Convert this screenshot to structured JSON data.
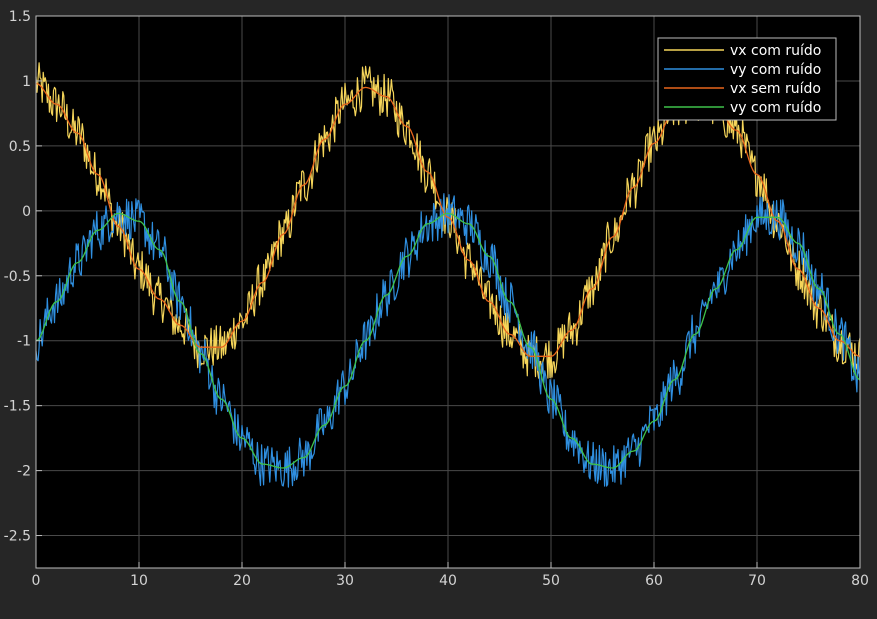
{
  "chart_data": {
    "type": "line",
    "title": "",
    "xlabel": "",
    "ylabel": "",
    "xlim": [
      0,
      80
    ],
    "ylim": [
      -2.75,
      1.5
    ],
    "x_ticks": [
      0,
      10,
      20,
      30,
      40,
      50,
      60,
      70,
      80
    ],
    "x_tick_labels": [
      "0",
      "10",
      "20",
      "30",
      "40",
      "50",
      "60",
      "70",
      "80"
    ],
    "y_ticks": [
      1.5,
      1,
      0.5,
      0,
      -0.5,
      -1,
      -1.5,
      -2,
      -2.5
    ],
    "y_tick_labels": [
      "1.5",
      "1",
      "0.5",
      "0",
      "-0.5",
      "-1",
      "-1.5",
      "-2",
      "-2.5"
    ],
    "grid": true,
    "legend_position": "top-right",
    "x": [
      0,
      2,
      4,
      6,
      8,
      10,
      12,
      14,
      16,
      18,
      20,
      22,
      24,
      26,
      28,
      30,
      32,
      34,
      36,
      38,
      40,
      42,
      44,
      46,
      48,
      50,
      52,
      54,
      56,
      58,
      60,
      62,
      64,
      66,
      68,
      70,
      72,
      74,
      76,
      78,
      80
    ],
    "series": [
      {
        "name": "vx com ruído",
        "color": "#f5d55a",
        "style": "noisy",
        "values": [
          0.98,
          0.82,
          0.6,
          0.28,
          -0.12,
          -0.45,
          -0.68,
          -0.88,
          -1.05,
          -1.05,
          -0.85,
          -0.55,
          -0.18,
          0.2,
          0.55,
          0.82,
          0.95,
          0.88,
          0.65,
          0.3,
          -0.05,
          -0.38,
          -0.7,
          -0.95,
          -1.12,
          -1.12,
          -0.92,
          -0.6,
          -0.2,
          0.18,
          0.52,
          0.78,
          0.85,
          0.8,
          0.62,
          0.28,
          -0.08,
          -0.45,
          -0.75,
          -1.0,
          -1.12
        ]
      },
      {
        "name": "vy com ruído",
        "color": "#2f8fe0",
        "style": "noisy",
        "values": [
          -1.0,
          -0.7,
          -0.4,
          -0.15,
          -0.02,
          -0.08,
          -0.3,
          -0.7,
          -1.1,
          -1.45,
          -1.75,
          -1.95,
          -1.98,
          -1.9,
          -1.65,
          -1.35,
          -1.0,
          -0.65,
          -0.35,
          -0.1,
          -0.02,
          -0.1,
          -0.35,
          -0.7,
          -1.05,
          -1.45,
          -1.75,
          -1.95,
          -1.98,
          -1.85,
          -1.62,
          -1.3,
          -0.95,
          -0.6,
          -0.3,
          -0.05,
          -0.05,
          -0.25,
          -0.6,
          -0.95,
          -1.3
        ]
      },
      {
        "name": "vx sem ruído",
        "color": "#e8661c",
        "style": "smooth",
        "values": [
          0.98,
          0.82,
          0.6,
          0.28,
          -0.12,
          -0.45,
          -0.68,
          -0.88,
          -1.05,
          -1.05,
          -0.85,
          -0.55,
          -0.18,
          0.2,
          0.55,
          0.82,
          0.95,
          0.88,
          0.65,
          0.3,
          -0.05,
          -0.38,
          -0.7,
          -0.95,
          -1.12,
          -1.12,
          -0.92,
          -0.6,
          -0.2,
          0.18,
          0.52,
          0.78,
          0.85,
          0.8,
          0.62,
          0.28,
          -0.08,
          -0.45,
          -0.75,
          -1.0,
          -1.12
        ]
      },
      {
        "name": "vy com ruído",
        "color": "#3fc24a",
        "style": "smooth",
        "values": [
          -1.0,
          -0.7,
          -0.4,
          -0.15,
          -0.02,
          -0.08,
          -0.3,
          -0.7,
          -1.1,
          -1.45,
          -1.75,
          -1.95,
          -1.98,
          -1.9,
          -1.65,
          -1.35,
          -1.0,
          -0.65,
          -0.35,
          -0.1,
          -0.02,
          -0.1,
          -0.35,
          -0.7,
          -1.05,
          -1.45,
          -1.75,
          -1.95,
          -1.98,
          -1.85,
          -1.62,
          -1.3,
          -0.95,
          -0.6,
          -0.3,
          -0.05,
          -0.05,
          -0.25,
          -0.6,
          -0.95,
          -1.3
        ]
      }
    ]
  }
}
